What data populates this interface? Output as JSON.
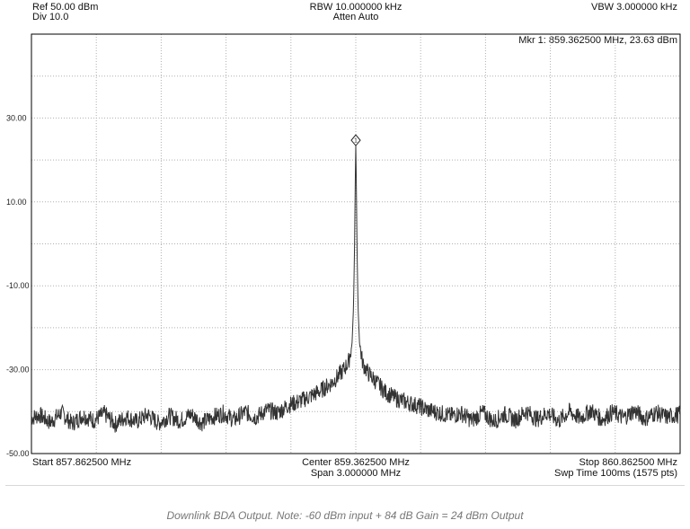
{
  "header": {
    "ref": "Ref 50.00 dBm",
    "div": "Div 10.0",
    "rbw": "RBW 10.000000 kHz",
    "atten": "Atten Auto",
    "vbw": "VBW 3.000000 kHz",
    "marker": "Mkr 1: 859.362500 MHz, 23.63 dBm"
  },
  "footer": {
    "start": "Start 857.862500 MHz",
    "center": "Center 859.362500 MHz",
    "span": "Span 3.000000 MHz",
    "stop": "Stop 860.862500 MHz",
    "sweep": "Swp Time 100ms (1575 pts)"
  },
  "caption": "Downlink BDA Output. Note: -60 dBm input + 84 dB Gain = 24 dBm Output",
  "colors": {
    "trace": "#333333",
    "grid": "#b0b0b0",
    "frame": "#000000",
    "caption": "#777777"
  },
  "chart_data": {
    "type": "line",
    "title": "",
    "xlabel": "",
    "ylabel": "",
    "x_unit": "MHz",
    "y_unit": "dBm",
    "xlim": [
      857.8625,
      860.8625
    ],
    "ylim": [
      -50,
      50
    ],
    "grid": true,
    "ytick_labels": [
      "30.00",
      "10.00",
      "-10.00",
      "-30.00",
      "-50.00"
    ],
    "ytick_values": [
      30,
      10,
      -10,
      -30,
      -50
    ],
    "marker": {
      "label": "1",
      "x": 859.3625,
      "y": 23.63
    },
    "series": [
      {
        "points": [
          [
            857.8625,
            -41.5
          ],
          [
            857.9,
            -40.8
          ],
          [
            857.95,
            -42.6
          ],
          [
            858.0,
            -40.2
          ],
          [
            858.05,
            -42.9
          ],
          [
            858.1,
            -40.9
          ],
          [
            858.15,
            -42.1
          ],
          [
            858.2,
            -40.5
          ],
          [
            858.25,
            -43.0
          ],
          [
            858.3,
            -41.2
          ],
          [
            858.35,
            -42.4
          ],
          [
            858.4,
            -40.7
          ],
          [
            858.45,
            -42.8
          ],
          [
            858.5,
            -41.0
          ],
          [
            858.55,
            -42.2
          ],
          [
            858.6,
            -40.6
          ],
          [
            858.65,
            -42.7
          ],
          [
            858.7,
            -41.3
          ],
          [
            858.75,
            -40.4
          ],
          [
            858.8,
            -42.0
          ],
          [
            858.85,
            -40.1
          ],
          [
            858.9,
            -41.4
          ],
          [
            858.95,
            -39.6
          ],
          [
            859.0,
            -40.3
          ],
          [
            859.05,
            -38.5
          ],
          [
            859.1,
            -37.6
          ],
          [
            859.15,
            -36.4
          ],
          [
            859.2,
            -35.0
          ],
          [
            859.25,
            -33.2
          ],
          [
            859.28,
            -31.6
          ],
          [
            859.31,
            -29.8
          ],
          [
            859.33,
            -28.0
          ],
          [
            859.345,
            -24.0
          ],
          [
            859.352,
            -15.0
          ],
          [
            859.357,
            0.0
          ],
          [
            859.36,
            15.0
          ],
          [
            859.3625,
            23.63
          ],
          [
            859.365,
            15.0
          ],
          [
            859.368,
            0.0
          ],
          [
            859.373,
            -15.0
          ],
          [
            859.38,
            -24.0
          ],
          [
            859.395,
            -28.6
          ],
          [
            859.42,
            -30.8
          ],
          [
            859.45,
            -32.5
          ],
          [
            859.5,
            -35.4
          ],
          [
            859.55,
            -36.9
          ],
          [
            859.6,
            -37.8
          ],
          [
            859.65,
            -38.6
          ],
          [
            859.7,
            -39.7
          ],
          [
            859.75,
            -40.3
          ],
          [
            859.8,
            -41.0
          ],
          [
            859.85,
            -40.4
          ],
          [
            859.9,
            -42.1
          ],
          [
            859.95,
            -40.2
          ],
          [
            860.0,
            -42.4
          ],
          [
            860.05,
            -40.6
          ],
          [
            860.1,
            -42.0
          ],
          [
            860.15,
            -39.9
          ],
          [
            860.2,
            -41.8
          ],
          [
            860.25,
            -40.3
          ],
          [
            860.3,
            -42.2
          ],
          [
            860.35,
            -40.0
          ],
          [
            860.4,
            -41.6
          ],
          [
            860.45,
            -39.7
          ],
          [
            860.5,
            -41.9
          ],
          [
            860.55,
            -40.1
          ],
          [
            860.6,
            -41.5
          ],
          [
            860.65,
            -39.8
          ],
          [
            860.7,
            -41.7
          ],
          [
            860.75,
            -40.2
          ],
          [
            860.8,
            -41.3
          ],
          [
            860.8625,
            -40.6
          ]
        ]
      }
    ]
  }
}
